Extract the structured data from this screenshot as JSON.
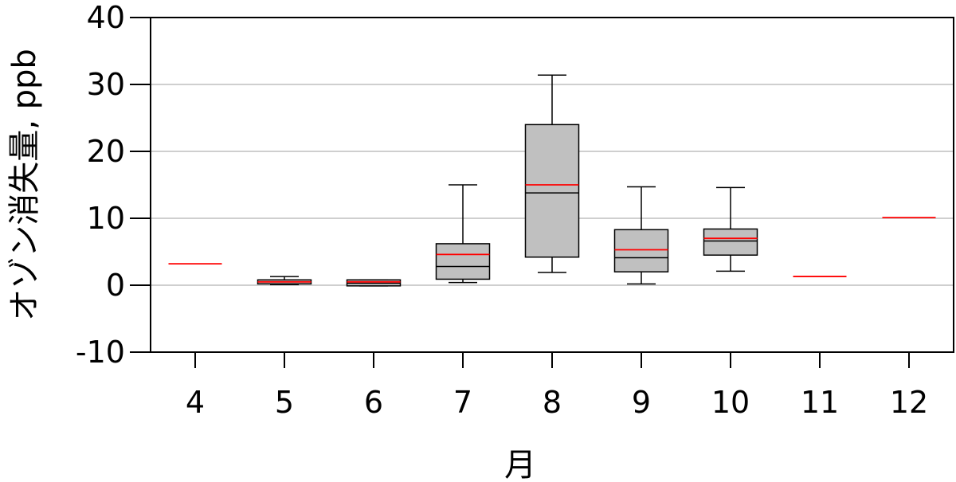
{
  "chart_data": {
    "type": "box",
    "xlabel": "月",
    "ylabel": "オゾン消失量, ppb",
    "ylim": [
      -10,
      40
    ],
    "yticks": [
      -10,
      0,
      10,
      20,
      30,
      40
    ],
    "grid": "horizontal",
    "colors": {
      "box_fill": "#c0c0c0",
      "box_edge": "#000000",
      "median_line": "#000000",
      "mean_line": "#ff0000",
      "grid": "#bfbfbf"
    },
    "categories": [
      "4",
      "5",
      "6",
      "7",
      "8",
      "9",
      "10",
      "11",
      "12"
    ],
    "boxes": [
      {
        "month": "4",
        "mean": 3.2
      },
      {
        "month": "5",
        "whisker_low": 0.1,
        "q1": 0.2,
        "median": 0.5,
        "q3": 0.8,
        "whisker_high": 1.3,
        "mean": 0.5
      },
      {
        "month": "6",
        "whisker_low": -0.1,
        "q1": -0.1,
        "median": 0.3,
        "q3": 0.8,
        "whisker_high": 0.8,
        "mean": 0.5
      },
      {
        "month": "7",
        "whisker_low": 0.4,
        "q1": 0.9,
        "median": 2.8,
        "q3": 6.2,
        "whisker_high": 15.0,
        "mean": 4.6
      },
      {
        "month": "8",
        "whisker_low": 1.9,
        "q1": 4.2,
        "median": 13.8,
        "q3": 24.0,
        "whisker_high": 31.4,
        "mean": 15.0
      },
      {
        "month": "9",
        "whisker_low": 0.2,
        "q1": 2.0,
        "median": 4.1,
        "q3": 8.3,
        "whisker_high": 14.7,
        "mean": 5.3
      },
      {
        "month": "10",
        "whisker_low": 2.1,
        "q1": 4.5,
        "median": 6.6,
        "q3": 8.4,
        "whisker_high": 14.6,
        "mean": 7.0
      },
      {
        "month": "11",
        "mean": 1.3
      },
      {
        "month": "12",
        "mean": 10.1
      }
    ]
  }
}
